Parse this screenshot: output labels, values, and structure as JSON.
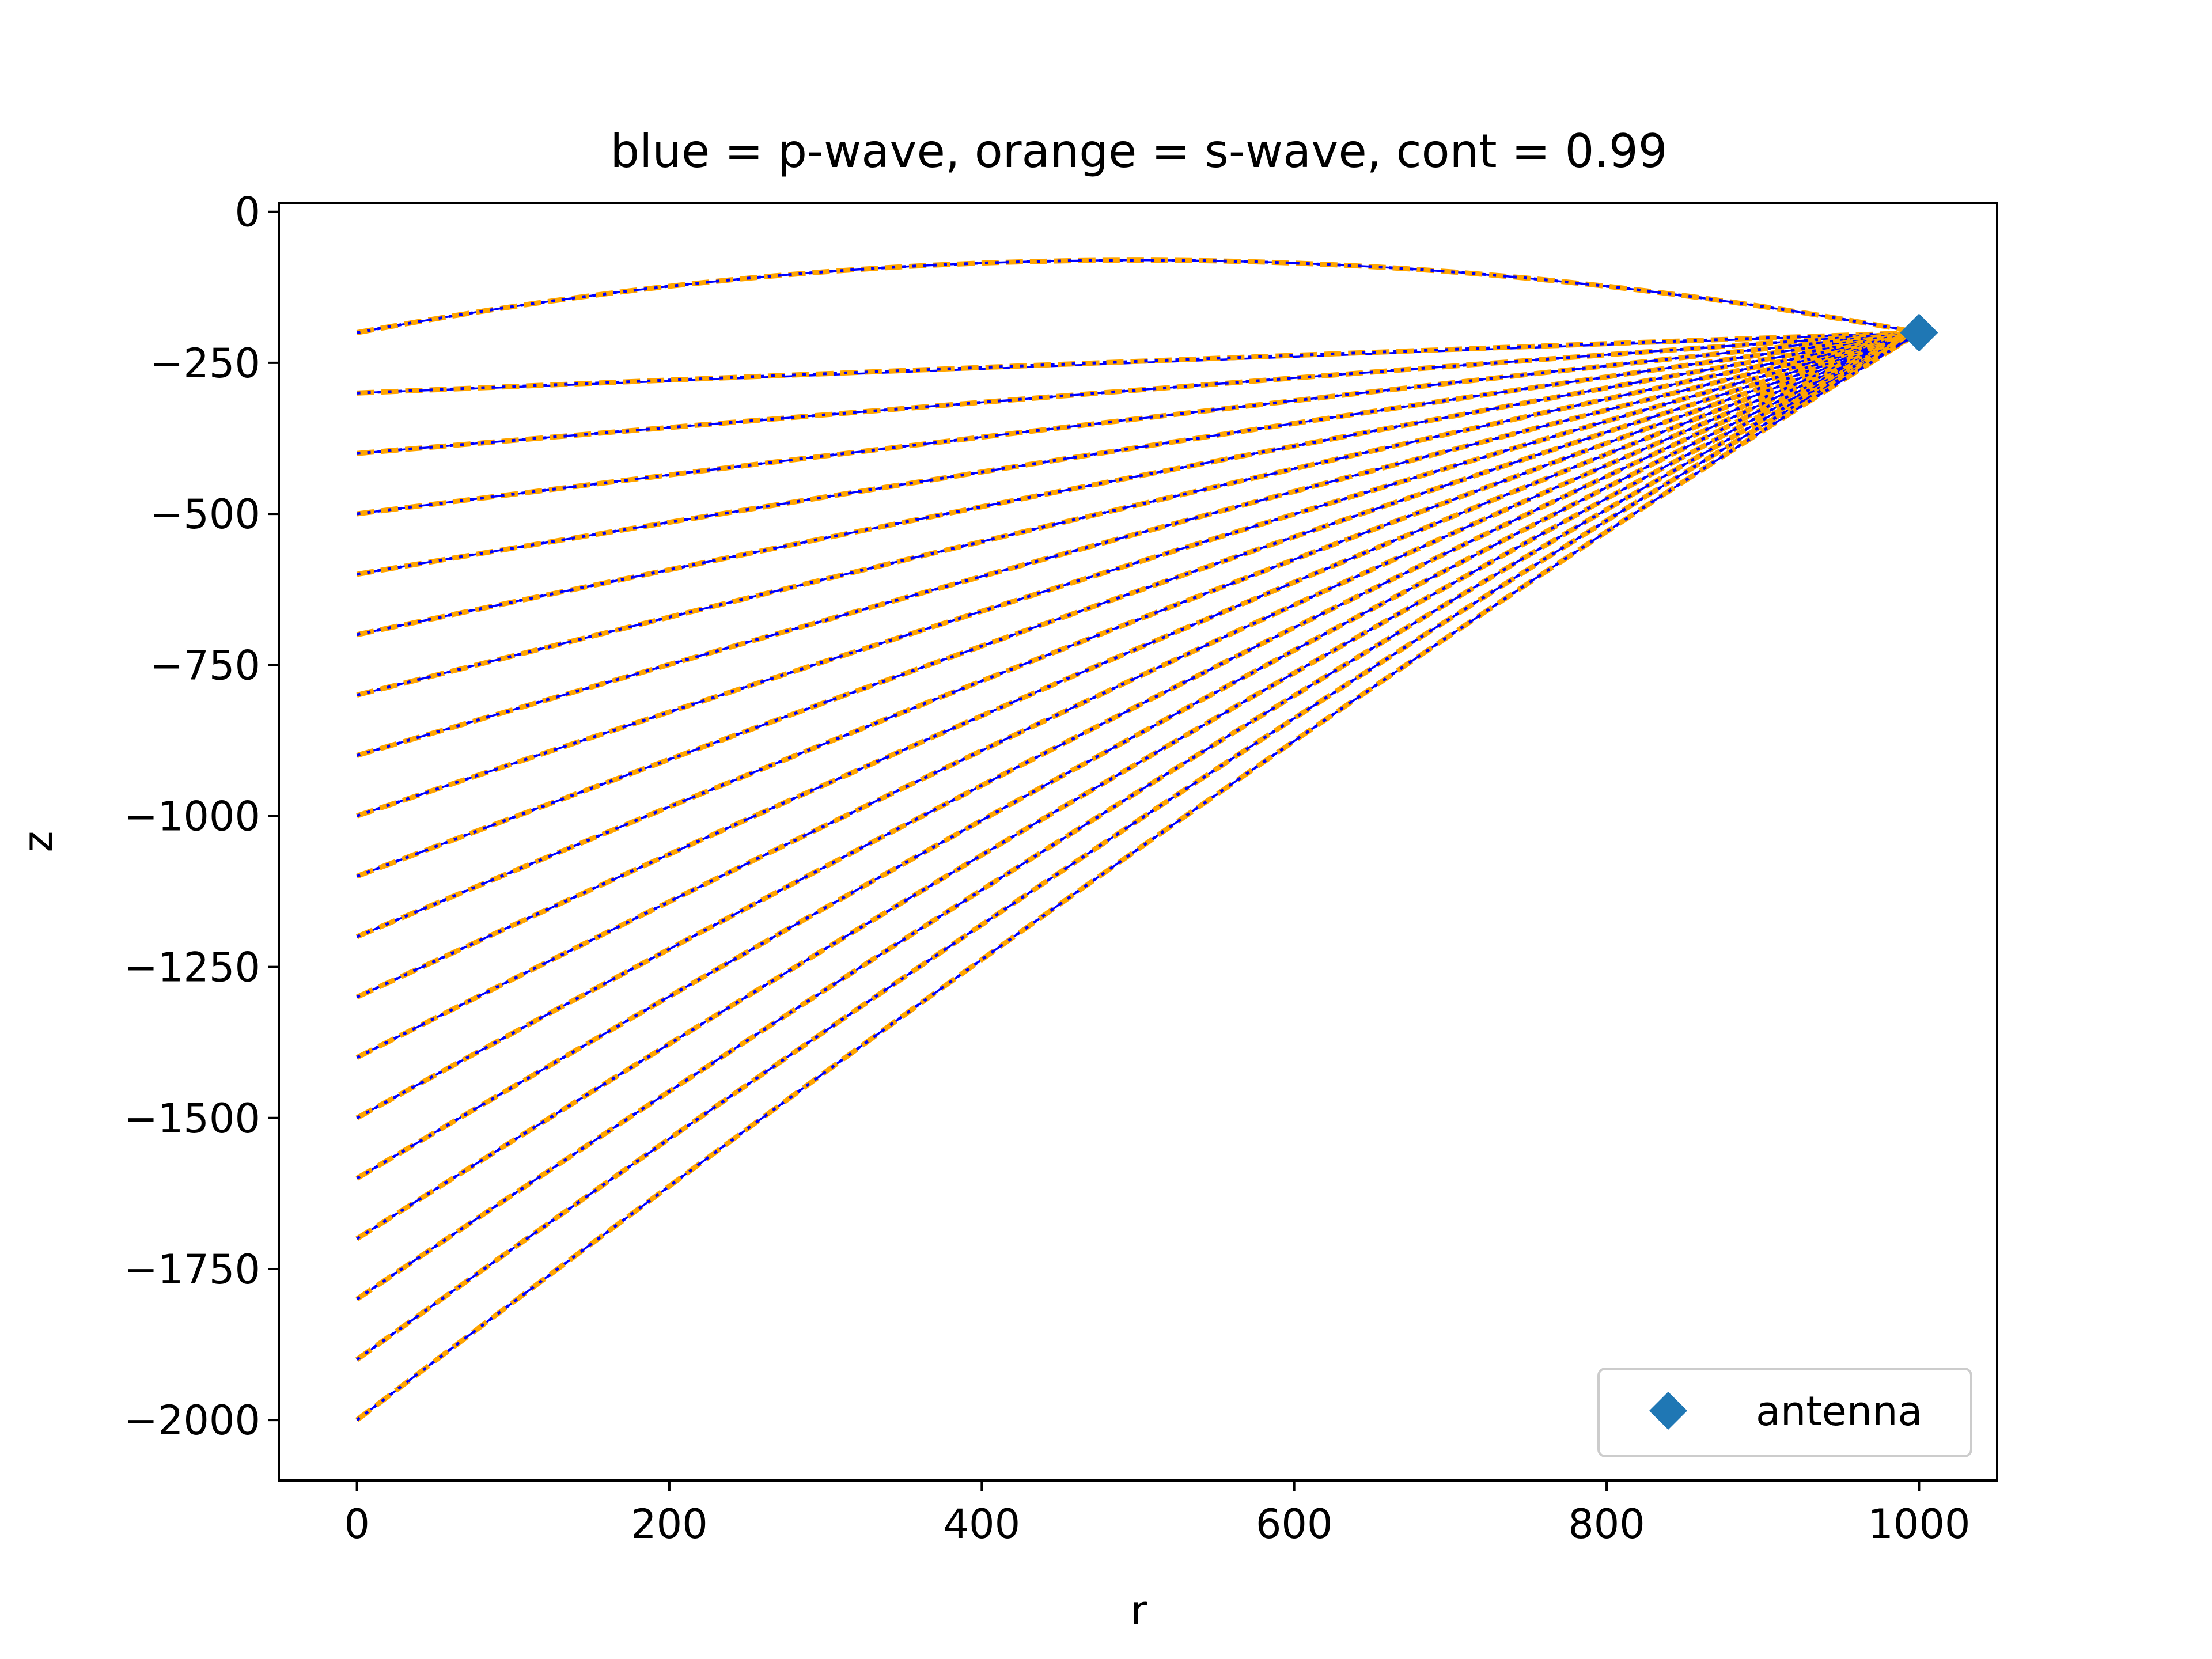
{
  "chart_data": {
    "type": "line",
    "title": "blue = p-wave, orange = s-wave, cont = 0.99",
    "xlabel": "r",
    "ylabel": "z",
    "xlim": [
      -50,
      1050
    ],
    "ylim": [
      -2100,
      15
    ],
    "xticks": [
      0,
      200,
      400,
      600,
      800,
      1000
    ],
    "xtick_labels": [
      "0",
      "200",
      "400",
      "600",
      "800",
      "1000"
    ],
    "yticks": [
      0,
      -250,
      -500,
      -750,
      -1000,
      -1250,
      -1500,
      -1750,
      -2000
    ],
    "ytick_labels": [
      "0",
      "−250",
      "−500",
      "−750",
      "−1000",
      "−1250",
      "−1500",
      "−1750",
      "−2000"
    ],
    "grid": false,
    "legend": {
      "location": "lower right",
      "entries": [
        "antenna"
      ]
    },
    "colors": {
      "p_wave": "#0000ff",
      "s_wave": "#ffa500",
      "antenna": "#1f77b4"
    },
    "antenna": {
      "label": "antenna",
      "r": 1000,
      "z": -200,
      "marker": "diamond"
    },
    "rays": {
      "end_r": 1000,
      "end_z": -200,
      "start_r": 0,
      "start_z": [
        -200,
        -300,
        -400,
        -500,
        -600,
        -700,
        -800,
        -900,
        -1000,
        -1100,
        -1200,
        -1300,
        -1400,
        -1500,
        -1600,
        -1700,
        -1800,
        -1900,
        -2000
      ],
      "reflected_ray": {
        "start_z": -200,
        "min_depth_z": -80,
        "min_depth_r": 500
      }
    },
    "series": [
      {
        "style": "solid",
        "color": "#0000ff"
      },
      {
        "style": "dashed",
        "color": "#ffa500"
      },
      {
        "style": "dotted",
        "color": "#0000ff"
      }
    ]
  }
}
